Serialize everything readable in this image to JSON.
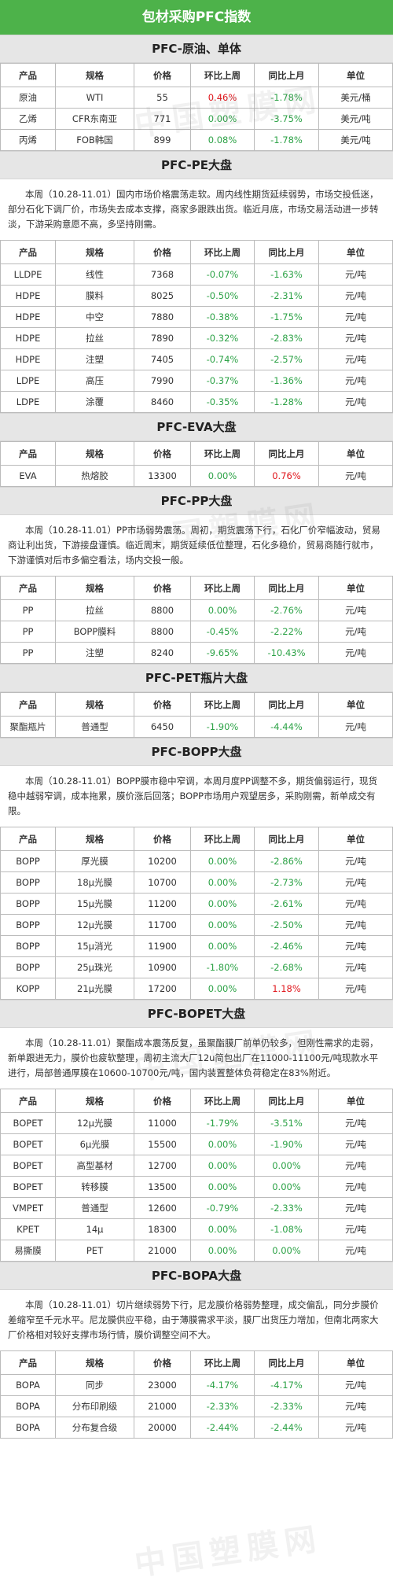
{
  "header": {
    "title": "包材采购PFC指数"
  },
  "columns": [
    "产品",
    "规格",
    "价格",
    "环比上周",
    "同比上月",
    "单位"
  ],
  "sections": [
    {
      "id": "crude",
      "title": "PFC-原油、单体",
      "paragraph": "",
      "rows": [
        {
          "product": "原油",
          "spec": "WTI",
          "price": "55",
          "wow": "0.46%",
          "wow_type": "pos",
          "mom": "-1.78%",
          "mom_type": "neg",
          "unit": "美元/桶"
        },
        {
          "product": "乙烯",
          "spec": "CFR东南亚",
          "price": "771",
          "wow": "0.00%",
          "wow_type": "flat",
          "mom": "-3.75%",
          "mom_type": "neg",
          "unit": "美元/吨"
        },
        {
          "product": "丙烯",
          "spec": "FOB韩国",
          "price": "899",
          "wow": "0.08%",
          "wow_type": "flat",
          "mom": "-1.78%",
          "mom_type": "neg",
          "unit": "美元/吨"
        }
      ]
    },
    {
      "id": "pe",
      "title": "PFC-PE大盘",
      "paragraph": "本周（10.28-11.01）国内市场价格震荡走软。周内线性期货延续弱势，市场交投低迷，部分石化下调厂价，市场失去成本支撑，商家多跟跌出货。临近月底，市场交易活动进一步转淡，下游采购意愿不高，多坚持刚需。",
      "rows": [
        {
          "product": "LLDPE",
          "spec": "线性",
          "price": "7368",
          "wow": "-0.07%",
          "wow_type": "neg",
          "mom": "-1.63%",
          "mom_type": "neg",
          "unit": "元/吨"
        },
        {
          "product": "HDPE",
          "spec": "膜料",
          "price": "8025",
          "wow": "-0.50%",
          "wow_type": "neg",
          "mom": "-2.31%",
          "mom_type": "neg",
          "unit": "元/吨"
        },
        {
          "product": "HDPE",
          "spec": "中空",
          "price": "7880",
          "wow": "-0.38%",
          "wow_type": "neg",
          "mom": "-1.75%",
          "mom_type": "neg",
          "unit": "元/吨"
        },
        {
          "product": "HDPE",
          "spec": "拉丝",
          "price": "7890",
          "wow": "-0.32%",
          "wow_type": "neg",
          "mom": "-2.83%",
          "mom_type": "neg",
          "unit": "元/吨"
        },
        {
          "product": "HDPE",
          "spec": "注塑",
          "price": "7405",
          "wow": "-0.74%",
          "wow_type": "neg",
          "mom": "-2.57%",
          "mom_type": "neg",
          "unit": "元/吨"
        },
        {
          "product": "LDPE",
          "spec": "高压",
          "price": "7990",
          "wow": "-0.37%",
          "wow_type": "neg",
          "mom": "-1.36%",
          "mom_type": "neg",
          "unit": "元/吨"
        },
        {
          "product": "LDPE",
          "spec": "涂覆",
          "price": "8460",
          "wow": "-0.35%",
          "wow_type": "neg",
          "mom": "-1.28%",
          "mom_type": "neg",
          "unit": "元/吨"
        }
      ]
    },
    {
      "id": "eva",
      "title": "PFC-EVA大盘",
      "paragraph": "",
      "rows": [
        {
          "product": "EVA",
          "spec": "热熔胶",
          "price": "13300",
          "wow": "0.00%",
          "wow_type": "flat",
          "mom": "0.76%",
          "mom_type": "pos",
          "unit": "元/吨"
        }
      ]
    },
    {
      "id": "pp",
      "title": "PFC-PP大盘",
      "paragraph": "本周（10.28-11.01）PP市场弱势震荡。周初，期货震荡下行，石化厂价窄幅波动，贸易商让利出货，下游接盘谨慎。临近周末，期货延续低位整理，石化多稳价，贸易商随行就市，下游谨慎对后市多偏空看法，场内交投一般。",
      "rows": [
        {
          "product": "PP",
          "spec": "拉丝",
          "price": "8800",
          "wow": "0.00%",
          "wow_type": "flat",
          "mom": "-2.76%",
          "mom_type": "neg",
          "unit": "元/吨"
        },
        {
          "product": "PP",
          "spec": "BOPP膜料",
          "price": "8800",
          "wow": "-0.45%",
          "wow_type": "neg",
          "mom": "-2.22%",
          "mom_type": "neg",
          "unit": "元/吨"
        },
        {
          "product": "PP",
          "spec": "注塑",
          "price": "8240",
          "wow": "-9.65%",
          "wow_type": "neg",
          "mom": "-10.43%",
          "mom_type": "neg",
          "unit": "元/吨"
        }
      ]
    },
    {
      "id": "pet",
      "title": "PFC-PET瓶片大盘",
      "paragraph": "",
      "rows": [
        {
          "product": "聚酯瓶片",
          "spec": "普通型",
          "price": "6450",
          "wow": "-1.90%",
          "wow_type": "neg",
          "mom": "-4.44%",
          "mom_type": "neg",
          "unit": "元/吨"
        }
      ]
    },
    {
      "id": "bopp",
      "title": "PFC-BOPP大盘",
      "paragraph": "本周（10.28-11.01）BOPP膜市稳中窄调，本周月度PP调整不多，期货偏弱运行，现货稳中越弱窄调，成本拖累，膜价涨后回落；BOPP市场用户观望居多，采购刚需，新单成交有限。",
      "rows": [
        {
          "product": "BOPP",
          "spec": "厚光膜",
          "price": "10200",
          "wow": "0.00%",
          "wow_type": "flat",
          "mom": "-2.86%",
          "mom_type": "neg",
          "unit": "元/吨"
        },
        {
          "product": "BOPP",
          "spec": "18μ光膜",
          "price": "10700",
          "wow": "0.00%",
          "wow_type": "flat",
          "mom": "-2.73%",
          "mom_type": "neg",
          "unit": "元/吨"
        },
        {
          "product": "BOPP",
          "spec": "15μ光膜",
          "price": "11200",
          "wow": "0.00%",
          "wow_type": "flat",
          "mom": "-2.61%",
          "mom_type": "neg",
          "unit": "元/吨"
        },
        {
          "product": "BOPP",
          "spec": "12μ光膜",
          "price": "11700",
          "wow": "0.00%",
          "wow_type": "flat",
          "mom": "-2.50%",
          "mom_type": "neg",
          "unit": "元/吨"
        },
        {
          "product": "BOPP",
          "spec": "15μ消光",
          "price": "11900",
          "wow": "0.00%",
          "wow_type": "flat",
          "mom": "-2.46%",
          "mom_type": "neg",
          "unit": "元/吨"
        },
        {
          "product": "BOPP",
          "spec": "25μ珠光",
          "price": "10900",
          "wow": "-1.80%",
          "wow_type": "neg",
          "mom": "-2.68%",
          "mom_type": "neg",
          "unit": "元/吨"
        },
        {
          "product": "KOPP",
          "spec": "21μ光膜",
          "price": "17200",
          "wow": "0.00%",
          "wow_type": "flat",
          "mom": "1.18%",
          "mom_type": "pos",
          "unit": "元/吨"
        }
      ]
    },
    {
      "id": "bopet",
      "title": "PFC-BOPET大盘",
      "paragraph": "本周（10.28-11.01）聚酯成本震荡反复，虽聚酯膜厂前单仍较多，但刚性需求的走弱，新单跟进无力，膜价也疲软整理，周初主流大厂12u简包出厂在11000-11100元/吨现款水平进行，局部普通厚膜在10600-10700元/吨，国内装置整体负荷稳定在83%附近。",
      "rows": [
        {
          "product": "BOPET",
          "spec": "12μ光膜",
          "price": "11000",
          "wow": "-1.79%",
          "wow_type": "neg",
          "mom": "-3.51%",
          "mom_type": "neg",
          "unit": "元/吨"
        },
        {
          "product": "BOPET",
          "spec": "6μ光膜",
          "price": "15500",
          "wow": "0.00%",
          "wow_type": "flat",
          "mom": "-1.90%",
          "mom_type": "neg",
          "unit": "元/吨"
        },
        {
          "product": "BOPET",
          "spec": "高型基材",
          "price": "12700",
          "wow": "0.00%",
          "wow_type": "flat",
          "mom": "0.00%",
          "mom_type": "flat",
          "unit": "元/吨"
        },
        {
          "product": "BOPET",
          "spec": "转移膜",
          "price": "13500",
          "wow": "0.00%",
          "wow_type": "flat",
          "mom": "0.00%",
          "mom_type": "flat",
          "unit": "元/吨"
        },
        {
          "product": "VMPET",
          "spec": "普通型",
          "price": "12600",
          "wow": "-0.79%",
          "wow_type": "neg",
          "mom": "-2.33%",
          "mom_type": "neg",
          "unit": "元/吨"
        },
        {
          "product": "KPET",
          "spec": "14μ",
          "price": "18300",
          "wow": "0.00%",
          "wow_type": "flat",
          "mom": "-1.08%",
          "mom_type": "neg",
          "unit": "元/吨"
        },
        {
          "product": "易撕膜",
          "spec": "PET",
          "price": "21000",
          "wow": "0.00%",
          "wow_type": "flat",
          "mom": "0.00%",
          "mom_type": "flat",
          "unit": "元/吨"
        }
      ]
    },
    {
      "id": "bopa",
      "title": "PFC-BOPA大盘",
      "paragraph": "本周（10.28-11.01）切片继续弱势下行，尼龙膜价格弱势整理，成交偏乱，同分步膜价差缩窄至千元水平。尼龙膜供应平稳，由于薄膜需求平淡，膜厂出货压力增加，但南北两家大厂价格相对较好支撑市场行情，膜价调整空间不大。",
      "rows": [
        {
          "product": "BOPA",
          "spec": "同步",
          "price": "23000",
          "wow": "-4.17%",
          "wow_type": "neg",
          "mom": "-4.17%",
          "mom_type": "neg",
          "unit": "元/吨"
        },
        {
          "product": "BOPA",
          "spec": "分布印刷级",
          "price": "21000",
          "wow": "-2.33%",
          "wow_type": "neg",
          "mom": "-2.33%",
          "mom_type": "neg",
          "unit": "元/吨"
        },
        {
          "product": "BOPA",
          "spec": "分布复合级",
          "price": "20000",
          "wow": "-2.44%",
          "wow_type": "neg",
          "mom": "-2.44%",
          "mom_type": "neg",
          "unit": "元/吨"
        }
      ]
    }
  ],
  "watermark": "中国塑膜网",
  "colors": {
    "header": "#4db24a",
    "section": "#e6e6e6",
    "down": "#2ca246",
    "up": "#e0151b",
    "border": "#bbbbbb"
  }
}
